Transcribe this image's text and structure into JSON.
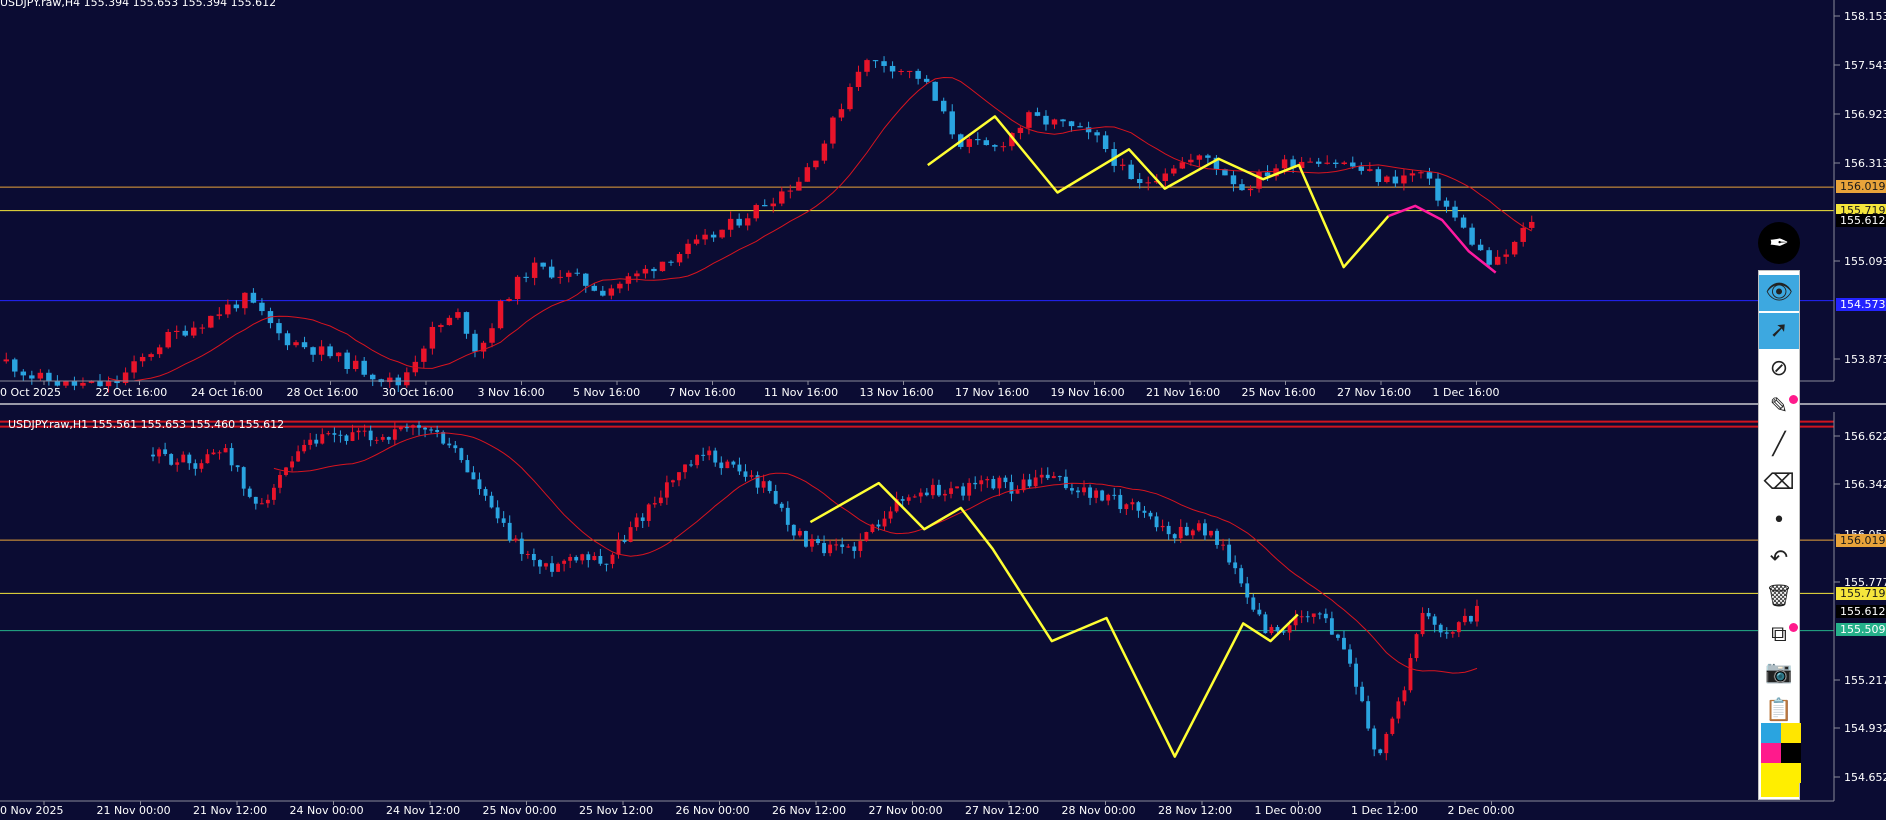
{
  "colors": {
    "background": "#0b0c33",
    "bull": "#e8142a",
    "bear": "#2aa4e0",
    "ma": "#d8141f",
    "pattern": "#ffff33",
    "forecast": "#ff1aa0",
    "orange_level": "#e8a33a",
    "yellow_level": "#f5e63c",
    "blue_level": "#2424ff",
    "green_level": "#25b08a",
    "axis_text": "#ffffff"
  },
  "chart_data": [
    {
      "type": "candlestick",
      "header": "USDJPY.raw,H4  155.394 155.653 155.394 155.612",
      "ylim": [
        153.55,
        158.3
      ],
      "y_ticks": [
        "158.153",
        "157.543",
        "156.923",
        "156.313",
        "155.093",
        "153.873"
      ],
      "x_ticks": [
        "0 Oct 2025",
        "22 Oct 16:00",
        "24 Oct 16:00",
        "28 Oct 16:00",
        "30 Oct 16:00",
        "3 Nov 16:00",
        "5 Nov 16:00",
        "7 Nov 16:00",
        "11 Nov 16:00",
        "13 Nov 16:00",
        "17 Nov 16:00",
        "19 Nov 16:00",
        "21 Nov 16:00",
        "25 Nov 16:00",
        "27 Nov 16:00",
        "1 Dec 16:00"
      ],
      "price_labels": [
        {
          "text": "156.019",
          "kind": "orange_level"
        },
        {
          "text": "155.719",
          "kind": "yellow_level"
        },
        {
          "text": "155.612",
          "kind": "current"
        },
        {
          "text": "154.573",
          "kind": "blue_level"
        }
      ],
      "levels": [
        {
          "price": 156.019,
          "kind": "orange_level"
        },
        {
          "price": 155.719,
          "kind": "yellow_level"
        },
        {
          "price": 154.573,
          "kind": "blue_level"
        }
      ],
      "candle_count": 180,
      "candles_seed": 11,
      "close_path": [
        [
          0,
          153.8
        ],
        [
          6,
          153.6
        ],
        [
          14,
          153.5
        ],
        [
          24,
          153.5
        ],
        [
          36,
          154.1
        ],
        [
          44,
          154.3
        ],
        [
          50,
          154.5
        ],
        [
          54,
          154.6
        ],
        [
          62,
          154.1
        ],
        [
          72,
          153.9
        ],
        [
          80,
          153.7
        ],
        [
          88,
          153.5
        ],
        [
          96,
          154.2
        ],
        [
          102,
          154.4
        ],
        [
          106,
          153.9
        ],
        [
          112,
          154.6
        ],
        [
          118,
          155.0
        ],
        [
          126,
          154.9
        ],
        [
          134,
          154.7
        ],
        [
          142,
          154.9
        ],
        [
          148,
          155.1
        ],
        [
          156,
          155.3
        ],
        [
          162,
          155.5
        ],
        [
          170,
          155.8
        ],
        [
          178,
          156.1
        ],
        [
          184,
          156.6
        ],
        [
          192,
          157.6
        ],
        [
          198,
          157.6
        ],
        [
          206,
          157.4
        ],
        [
          214,
          156.6
        ],
        [
          222,
          156.5
        ],
        [
          230,
          156.9
        ],
        [
          238,
          156.8
        ],
        [
          246,
          156.6
        ],
        [
          254,
          156.0
        ],
        [
          262,
          156.3
        ],
        [
          270,
          156.4
        ],
        [
          278,
          156.0
        ],
        [
          286,
          156.3
        ],
        [
          294,
          156.4
        ],
        [
          302,
          156.3
        ],
        [
          310,
          156.1
        ],
        [
          318,
          156.2
        ],
        [
          326,
          155.6
        ],
        [
          334,
          155.0
        ],
        [
          338,
          155.2
        ],
        [
          343,
          155.61
        ]
      ],
      "zigzag": [
        [
          207,
          156.3
        ],
        [
          222,
          156.92
        ],
        [
          236,
          155.95
        ],
        [
          252,
          156.5
        ],
        [
          260,
          156.0
        ],
        [
          272,
          156.38
        ],
        [
          282,
          156.12
        ],
        [
          290,
          156.3
        ],
        [
          300,
          155.0
        ],
        [
          310,
          155.65
        ]
      ],
      "forecast": [
        [
          310,
          155.65
        ],
        [
          316,
          155.78
        ],
        [
          322,
          155.6
        ],
        [
          328,
          155.2
        ],
        [
          334,
          154.93
        ]
      ],
      "ma_period": 12
    },
    {
      "type": "candlestick",
      "header": "USDJPY.raw,H1  155.561 155.653 155.460 155.612",
      "ylim": [
        154.55,
        156.74
      ],
      "y_ticks": [
        "156.622",
        "156.342",
        "156.057",
        "155.777",
        "155.217",
        "154.932",
        "154.652"
      ],
      "x_ticks": [
        "0 Nov 2025",
        "21 Nov 00:00",
        "21 Nov 12:00",
        "24 Nov 00:00",
        "24 Nov 12:00",
        "25 Nov 00:00",
        "25 Nov 12:00",
        "26 Nov 00:00",
        "26 Nov 12:00",
        "27 Nov 00:00",
        "27 Nov 12:00",
        "28 Nov 00:00",
        "28 Nov 12:00",
        "1 Dec 00:00",
        "1 Dec 12:00",
        "2 Dec 00:00"
      ],
      "price_labels": [
        {
          "text": "156.019",
          "kind": "orange_level"
        },
        {
          "text": "155.719",
          "kind": "yellow_level"
        },
        {
          "text": "155.612",
          "kind": "current"
        },
        {
          "text": "155.509",
          "kind": "green_level"
        }
      ],
      "levels": [
        {
          "price": 156.686,
          "kind": "red_level"
        },
        {
          "price": 156.019,
          "kind": "orange_level"
        },
        {
          "price": 155.719,
          "kind": "yellow_level"
        },
        {
          "price": 155.509,
          "kind": "green_level"
        }
      ],
      "candle_count": 220,
      "candles_seed": 29,
      "close_path": [
        [
          0,
          156.5
        ],
        [
          10,
          156.45
        ],
        [
          16,
          156.55
        ],
        [
          22,
          156.2
        ],
        [
          28,
          156.35
        ],
        [
          34,
          156.55
        ],
        [
          40,
          156.6
        ],
        [
          50,
          156.6
        ],
        [
          60,
          156.65
        ],
        [
          66,
          156.55
        ],
        [
          72,
          156.3
        ],
        [
          78,
          156.05
        ],
        [
          86,
          155.85
        ],
        [
          94,
          155.95
        ],
        [
          100,
          155.9
        ],
        [
          106,
          156.1
        ],
        [
          114,
          156.35
        ],
        [
          122,
          156.5
        ],
        [
          130,
          156.4
        ],
        [
          136,
          156.3
        ],
        [
          142,
          156.05
        ],
        [
          148,
          155.95
        ],
        [
          156,
          156.0
        ],
        [
          162,
          156.2
        ],
        [
          170,
          156.3
        ],
        [
          178,
          156.3
        ],
        [
          186,
          156.35
        ],
        [
          190,
          156.3
        ],
        [
          196,
          156.38
        ],
        [
          202,
          156.32
        ],
        [
          210,
          156.25
        ],
        [
          218,
          156.2
        ],
        [
          224,
          156.05
        ],
        [
          230,
          156.1
        ],
        [
          236,
          156.0
        ],
        [
          240,
          155.75
        ],
        [
          246,
          155.5
        ],
        [
          252,
          155.55
        ],
        [
          258,
          155.6
        ],
        [
          264,
          155.35
        ],
        [
          270,
          154.8
        ],
        [
          276,
          155.2
        ],
        [
          280,
          155.6
        ],
        [
          286,
          155.5
        ],
        [
          292,
          155.62
        ]
      ],
      "zigzag": [
        [
          145,
          156.12
        ],
        [
          160,
          156.34
        ],
        [
          170,
          156.08
        ],
        [
          178,
          156.2
        ],
        [
          185,
          155.97
        ],
        [
          198,
          155.45
        ],
        [
          210,
          155.58
        ],
        [
          225,
          154.8
        ],
        [
          240,
          155.55
        ],
        [
          246,
          155.45
        ],
        [
          252,
          155.6
        ]
      ],
      "ma_period": 20
    }
  ],
  "toolbar": {
    "pen_icon": "pen-nib-icon",
    "items": [
      {
        "name": "eye-icon",
        "glyph": "👁",
        "active": true
      },
      {
        "name": "cursor-icon",
        "glyph": "➚",
        "active": true
      },
      {
        "name": "no-draw-icon",
        "glyph": "⊘",
        "active": false
      },
      {
        "name": "eraser-pen-icon",
        "glyph": "✎",
        "active": false,
        "dot": true
      },
      {
        "name": "line-icon",
        "glyph": "╱",
        "active": false
      },
      {
        "name": "eraser-icon",
        "glyph": "⌫",
        "active": false
      },
      {
        "name": "dot-icon",
        "glyph": "•",
        "active": false
      },
      {
        "name": "undo-icon",
        "glyph": "↶",
        "active": false
      },
      {
        "name": "trash-icon",
        "glyph": "🗑",
        "active": false
      },
      {
        "name": "board-icon",
        "glyph": "⧉",
        "active": false,
        "dot": true
      },
      {
        "name": "camera-icon",
        "glyph": "📷",
        "active": false
      },
      {
        "name": "clipboard-icon",
        "glyph": "📋",
        "active": false
      }
    ],
    "swatches": [
      "#2aa4e0",
      "#ffe600",
      "#ff1a8c",
      "#000000",
      "#ffee00",
      "#ffee00"
    ]
  }
}
